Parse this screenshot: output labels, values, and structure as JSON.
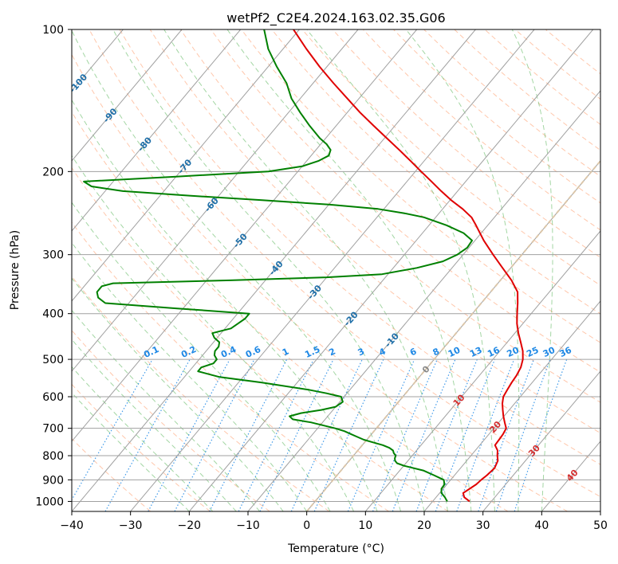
{
  "chart_data": {
    "type": "line",
    "subtype": "skew-t log-p diagram",
    "title": "wetPf2_C2E4.2024.163.02.35.G06",
    "xlabel": "Temperature (°C)",
    "ylabel": "Pressure (hPa)",
    "xlim": [
      -40,
      50
    ],
    "ylim": [
      1050,
      100
    ],
    "y_scale": "log",
    "x_ticks": [
      -40,
      -30,
      -20,
      -10,
      0,
      10,
      20,
      30,
      40,
      50
    ],
    "x_tick_labels": [
      "−40",
      "−30",
      "−20",
      "−10",
      "0",
      "10",
      "20",
      "30",
      "40",
      "50"
    ],
    "y_ticks": [
      100,
      200,
      300,
      400,
      500,
      600,
      700,
      800,
      900,
      1000
    ],
    "y_tick_labels": [
      "100",
      "200",
      "300",
      "400",
      "500",
      "600",
      "700",
      "800",
      "900",
      "1000"
    ],
    "grid": true,
    "colors": {
      "temperature": "#e00000",
      "dewpoint": "#008000",
      "isotherm": "#a0a0a0",
      "dry_adiabat": "#ff9966",
      "moist_adiabat": "#66bb66",
      "mixing_ratio": "#1e88e5",
      "dry_adiabat_label": "#d32f2f",
      "isotherm_label": "#1f6fa8",
      "zero_isotherm": "#e0c8a8"
    },
    "series": [
      {
        "key": "temperature",
        "points": [
          [
            1000,
            26.3
          ],
          [
            980,
            24.8
          ],
          [
            960,
            24.0
          ],
          [
            940,
            24.5
          ],
          [
            920,
            25.0
          ],
          [
            900,
            25.2
          ],
          [
            880,
            25.5
          ],
          [
            850,
            25.8
          ],
          [
            820,
            25.3
          ],
          [
            800,
            24.5
          ],
          [
            780,
            23.8
          ],
          [
            760,
            22.6
          ],
          [
            740,
            22.5
          ],
          [
            720,
            22.4
          ],
          [
            700,
            22.1
          ],
          [
            680,
            21.0
          ],
          [
            660,
            19.9
          ],
          [
            640,
            18.9
          ],
          [
            620,
            17.9
          ],
          [
            600,
            17.1
          ],
          [
            580,
            16.8
          ],
          [
            560,
            16.5
          ],
          [
            540,
            16.3
          ],
          [
            520,
            15.9
          ],
          [
            500,
            15.1
          ],
          [
            480,
            13.9
          ],
          [
            460,
            12.3
          ],
          [
            440,
            10.6
          ],
          [
            420,
            9.0
          ],
          [
            400,
            7.6
          ],
          [
            380,
            6.2
          ],
          [
            360,
            4.6
          ],
          [
            340,
            1.9
          ],
          [
            320,
            -1.4
          ],
          [
            300,
            -4.9
          ],
          [
            280,
            -8.5
          ],
          [
            260,
            -12.0
          ],
          [
            250,
            -13.9
          ],
          [
            240,
            -16.6
          ],
          [
            230,
            -19.8
          ],
          [
            220,
            -22.8
          ],
          [
            210,
            -25.8
          ],
          [
            200,
            -29.0
          ],
          [
            190,
            -32.3
          ],
          [
            180,
            -35.8
          ],
          [
            170,
            -39.6
          ],
          [
            160,
            -43.6
          ],
          [
            150,
            -47.8
          ],
          [
            140,
            -52.0
          ],
          [
            130,
            -56.5
          ],
          [
            120,
            -61.2
          ],
          [
            110,
            -66.0
          ],
          [
            100,
            -71.0
          ]
        ]
      },
      {
        "key": "dewpoint",
        "points": [
          [
            1000,
            22.5
          ],
          [
            990,
            22.0
          ],
          [
            980,
            21.5
          ],
          [
            960,
            20.3
          ],
          [
            940,
            19.7
          ],
          [
            920,
            19.6
          ],
          [
            900,
            18.8
          ],
          [
            880,
            16.5
          ],
          [
            860,
            14.0
          ],
          [
            840,
            10.0
          ],
          [
            830,
            8.5
          ],
          [
            820,
            7.8
          ],
          [
            810,
            7.4
          ],
          [
            800,
            7.2
          ],
          [
            790,
            6.5
          ],
          [
            780,
            6.0
          ],
          [
            770,
            5.0
          ],
          [
            760,
            3.5
          ],
          [
            750,
            1.5
          ],
          [
            740,
            -0.5
          ],
          [
            730,
            -2.0
          ],
          [
            720,
            -3.5
          ],
          [
            710,
            -5.0
          ],
          [
            700,
            -7.0
          ],
          [
            680,
            -12.0
          ],
          [
            670,
            -15.5
          ],
          [
            660,
            -16.5
          ],
          [
            650,
            -15.0
          ],
          [
            640,
            -12.0
          ],
          [
            630,
            -10.0
          ],
          [
            615,
            -9.5
          ],
          [
            600,
            -10.5
          ],
          [
            590,
            -13.5
          ],
          [
            580,
            -17.0
          ],
          [
            560,
            -26.0
          ],
          [
            545,
            -34.0
          ],
          [
            530,
            -38.5
          ],
          [
            520,
            -38.5
          ],
          [
            510,
            -37.0
          ],
          [
            500,
            -37.0
          ],
          [
            490,
            -38.0
          ],
          [
            480,
            -38.5
          ],
          [
            470,
            -38.5
          ],
          [
            460,
            -39.0
          ],
          [
            450,
            -40.5
          ],
          [
            440,
            -41.5
          ],
          [
            430,
            -39.0
          ],
          [
            420,
            -38.5
          ],
          [
            410,
            -38.0
          ],
          [
            400,
            -38.0
          ],
          [
            390,
            -51.0
          ],
          [
            380,
            -64.0
          ],
          [
            370,
            -66.0
          ],
          [
            360,
            -67.0
          ],
          [
            350,
            -67.0
          ],
          [
            345,
            -65.5
          ],
          [
            340,
            -46.0
          ],
          [
            335,
            -30.0
          ],
          [
            330,
            -21.0
          ],
          [
            320,
            -16.0
          ],
          [
            310,
            -12.5
          ],
          [
            300,
            -11.0
          ],
          [
            290,
            -10.3
          ],
          [
            280,
            -10.5
          ],
          [
            270,
            -13.0
          ],
          [
            260,
            -17.0
          ],
          [
            250,
            -22.0
          ],
          [
            245,
            -26.0
          ],
          [
            240,
            -31.0
          ],
          [
            235,
            -40.0
          ],
          [
            230,
            -52.0
          ],
          [
            225,
            -65.0
          ],
          [
            220,
            -77.0
          ],
          [
            215,
            -83.0
          ],
          [
            210,
            -85.0
          ],
          [
            205,
            -70.0
          ],
          [
            200,
            -55.0
          ],
          [
            195,
            -50.0
          ],
          [
            190,
            -48.0
          ],
          [
            185,
            -47.0
          ],
          [
            180,
            -47.5
          ],
          [
            175,
            -49.0
          ],
          [
            170,
            -51.0
          ],
          [
            160,
            -54.5
          ],
          [
            150,
            -58.0
          ],
          [
            140,
            -61.5
          ],
          [
            130,
            -64.5
          ],
          [
            120,
            -68.5
          ],
          [
            110,
            -72.5
          ],
          [
            100,
            -76.0
          ]
        ]
      }
    ],
    "isotherm_labels": [
      "-100",
      "-90",
      "-80",
      "-70",
      "-60",
      "-50",
      "-40",
      "-30",
      "-20",
      "-10",
      "0",
      "10",
      "20",
      "30",
      "40"
    ],
    "mixing_ratio_labels": [
      "0.1",
      "0.2",
      "0.4",
      "0.6",
      "1",
      "1.5",
      "2",
      "3",
      "4",
      "6",
      "8",
      "10",
      "13",
      "16",
      "20",
      "25",
      "30",
      "36"
    ]
  }
}
